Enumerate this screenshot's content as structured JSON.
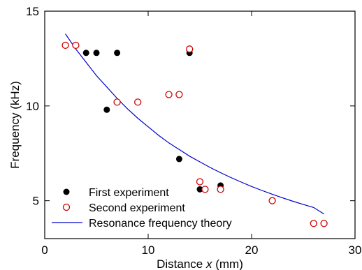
{
  "chart_data": {
    "type": "scatter",
    "title": "",
    "xlabel": {
      "prefix": "Distance ",
      "variable": "x",
      "suffix": " (mm)"
    },
    "ylabel": "Frequency (kHz)",
    "xlim": [
      0,
      30
    ],
    "ylim": [
      3,
      15
    ],
    "xticks": [
      0,
      10,
      20,
      30
    ],
    "yticks": [
      5,
      10,
      15
    ],
    "grid": false,
    "legend_position": "bottom-left",
    "series": [
      {
        "name": "First experiment",
        "marker": "filled-circle",
        "color": "#000000",
        "points": [
          [
            4,
            12.8
          ],
          [
            5,
            12.8
          ],
          [
            7,
            12.8
          ],
          [
            6,
            9.8
          ],
          [
            14,
            12.8
          ],
          [
            13,
            7.2
          ],
          [
            15,
            5.6
          ],
          [
            17,
            5.8
          ]
        ]
      },
      {
        "name": "Second experiment",
        "marker": "open-circle",
        "color": "#cc0000",
        "points": [
          [
            2,
            13.2
          ],
          [
            3,
            13.2
          ],
          [
            7,
            10.2
          ],
          [
            9,
            10.2
          ],
          [
            12,
            10.6
          ],
          [
            13,
            10.6
          ],
          [
            14,
            13.0
          ],
          [
            15,
            6.0
          ],
          [
            15.5,
            5.6
          ],
          [
            17,
            5.6
          ],
          [
            22,
            5.0
          ],
          [
            26,
            3.8
          ],
          [
            27,
            3.8
          ]
        ]
      },
      {
        "name": "Resonance frequency theory",
        "type": "line",
        "color": "#0000cc",
        "x": [
          2,
          3,
          4,
          5,
          6,
          7,
          8,
          9,
          10,
          11,
          12,
          13,
          14,
          15,
          16,
          17,
          18,
          19,
          20,
          21,
          22,
          23,
          24,
          25,
          26,
          27
        ],
        "y": [
          13.8,
          13.0,
          12.3,
          11.6,
          11.0,
          10.4,
          9.85,
          9.35,
          8.9,
          8.45,
          8.05,
          7.7,
          7.35,
          7.05,
          6.75,
          6.48,
          6.22,
          5.98,
          5.75,
          5.54,
          5.34,
          5.15,
          4.97,
          4.8,
          4.64,
          4.3
        ]
      }
    ]
  }
}
